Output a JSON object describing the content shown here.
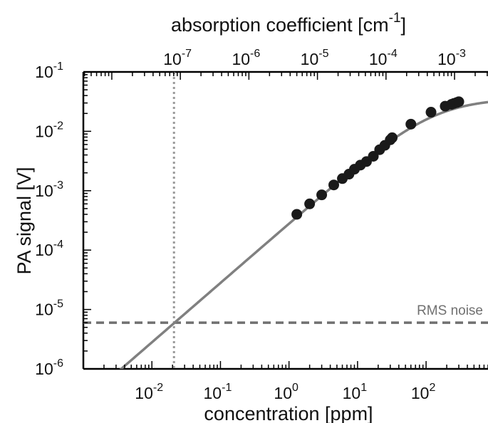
{
  "chart_data": {
    "type": "scatter",
    "xlabel": "concentration [ppm]",
    "ylabel": "PA signal [V]",
    "x_scale": "log",
    "y_scale": "log",
    "xlim": [
      0.001,
      800
    ],
    "ylim": [
      1e-06,
      0.1
    ],
    "x_ticks": [
      {
        "value": 0.01,
        "base": "10",
        "exp": "-2"
      },
      {
        "value": 0.1,
        "base": "10",
        "exp": "-1"
      },
      {
        "value": 1,
        "base": "10",
        "exp": "0"
      },
      {
        "value": 10,
        "base": "10",
        "exp": "1"
      },
      {
        "value": 100,
        "base": "10",
        "exp": "2"
      }
    ],
    "y_ticks": [
      {
        "value": 1e-06,
        "base": "10",
        "exp": "-6"
      },
      {
        "value": 1e-05,
        "base": "10",
        "exp": "-5"
      },
      {
        "value": 0.0001,
        "base": "10",
        "exp": "-4"
      },
      {
        "value": 0.001,
        "base": "10",
        "exp": "-3"
      },
      {
        "value": 0.01,
        "base": "10",
        "exp": "-2"
      },
      {
        "value": 0.1,
        "base": "10",
        "exp": "-1"
      }
    ],
    "top_axis": {
      "label": "absorption coefficient [cm",
      "label_exp": "-1",
      "label_close": "]",
      "ticks": [
        {
          "value": 1e-07,
          "base": "10",
          "exp": "-7"
        },
        {
          "value": 1e-06,
          "base": "10",
          "exp": "-6"
        },
        {
          "value": 1e-05,
          "base": "10",
          "exp": "-5"
        },
        {
          "value": 0.0001,
          "base": "10",
          "exp": "-4"
        },
        {
          "value": 0.001,
          "base": "10",
          "exp": "-3"
        }
      ],
      "ppm_per_cm_inv": 260000
    },
    "series": [
      {
        "marker": "filled-circle",
        "color": "#1a1a1a",
        "points": [
          [
            1.3,
            0.0004
          ],
          [
            2.0,
            0.0006
          ],
          [
            3.0,
            0.00085
          ],
          [
            4.5,
            0.00125
          ],
          [
            6.0,
            0.0016
          ],
          [
            7.5,
            0.0019
          ],
          [
            9.0,
            0.0023
          ],
          [
            11.0,
            0.0027
          ],
          [
            13.5,
            0.0031
          ],
          [
            17.0,
            0.0038
          ],
          [
            21.0,
            0.0049
          ],
          [
            25.0,
            0.0058
          ],
          [
            30.0,
            0.0072
          ],
          [
            32.0,
            0.0078
          ],
          [
            60.0,
            0.0132
          ],
          [
            118.0,
            0.021
          ],
          [
            190.0,
            0.0265
          ],
          [
            235.0,
            0.0285
          ],
          [
            255.0,
            0.0295
          ],
          [
            280.0,
            0.0305
          ],
          [
            300.0,
            0.0315
          ]
        ]
      },
      {
        "style": "solid-line",
        "color": "#808080",
        "sensitivity": 0.00028,
        "saturation": 0.036
      }
    ],
    "reference_lines": [
      {
        "orientation": "horizontal",
        "value": 6e-06,
        "style": "dashed",
        "color": "#707070",
        "label": "RMS noise"
      },
      {
        "orientation": "vertical",
        "value": 0.021,
        "style": "dotted",
        "color": "#9a9a9a"
      }
    ],
    "grid": false,
    "legend": "none"
  }
}
